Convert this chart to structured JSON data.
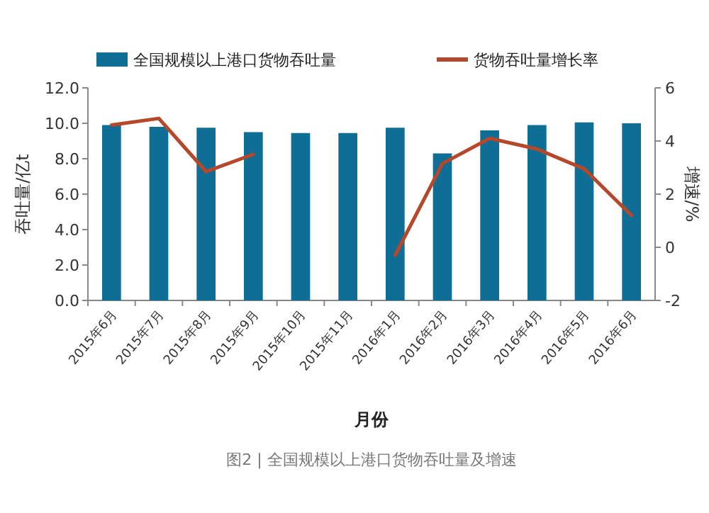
{
  "chart_data": {
    "type": "bar",
    "categories": [
      "2015年6月",
      "2015年7月",
      "2015年8月",
      "2015年9月",
      "2015年10月",
      "2015年11月",
      "2016年1月",
      "2016年2月",
      "2016年3月",
      "2016年4月",
      "2016年5月",
      "2016年6月"
    ],
    "series": [
      {
        "name": "全国规模以上港口货物吞吐量",
        "color": "#0f6e96",
        "values": [
          9.9,
          9.8,
          9.75,
          9.5,
          9.45,
          9.45,
          9.75,
          8.3,
          9.6,
          9.9,
          10.05,
          10.0
        ]
      },
      {
        "name": "货物吞吐量增长率",
        "type": "line",
        "axis": "y2",
        "color": "#b5472a",
        "values": [
          4.6,
          4.85,
          2.85,
          3.5,
          null,
          null,
          -0.3,
          3.15,
          4.1,
          3.7,
          2.95,
          1.2
        ]
      }
    ],
    "ylim": [
      0,
      12
    ],
    "yticks": [
      {
        "value": 0,
        "label": "0.0"
      },
      {
        "value": 2,
        "label": "2.0"
      },
      {
        "value": 4,
        "label": "4.0"
      },
      {
        "value": 6,
        "label": "6.0"
      },
      {
        "value": 8,
        "label": "8.0"
      },
      {
        "value": 10,
        "label": "10.0"
      },
      {
        "value": 12,
        "label": "12.0"
      }
    ],
    "y2lim": [
      -2,
      6
    ],
    "y2ticks": [
      -2,
      0,
      2,
      4,
      6
    ],
    "ylabel": "吞吐量/亿t",
    "y2label": "增速/%",
    "xlabel": "月份",
    "legend": "top",
    "annotations": [
      "图2 | 全国规模以上港口货物吞吐量及增速"
    ]
  }
}
